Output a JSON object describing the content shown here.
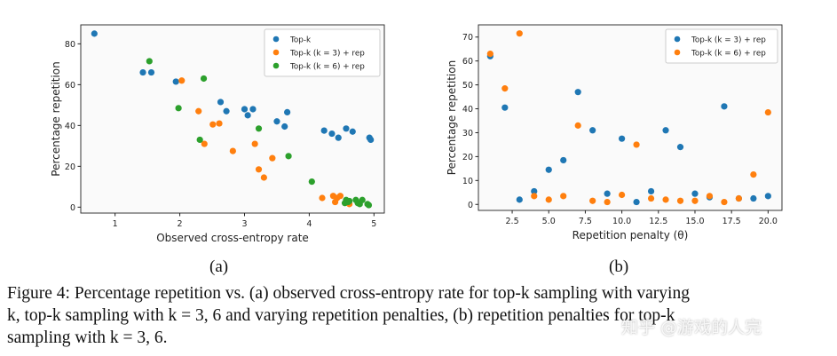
{
  "chart_data": [
    {
      "type": "scatter",
      "xlabel": "Observed cross-entropy rate",
      "ylabel": "Percentage repetition",
      "xlim": [
        0.47,
        5.16
      ],
      "ylim": [
        -2.9,
        89.3
      ],
      "xticks": [
        1,
        2,
        3,
        4,
        5
      ],
      "yticks": [
        0,
        20,
        40,
        60,
        80
      ],
      "grid": false,
      "legend_position": "top-right",
      "series": [
        {
          "name": "Top-k",
          "color": "#1f77b4",
          "x": [
            0.68,
            1.43,
            1.56,
            1.94,
            2.63,
            2.72,
            3.0,
            3.05,
            3.13,
            3.5,
            3.62,
            3.66,
            4.23,
            4.35,
            4.45,
            4.57,
            4.67,
            4.93,
            4.95
          ],
          "y": [
            85,
            66,
            66,
            61.5,
            51.5,
            47,
            48,
            45,
            48,
            42,
            39.5,
            46.5,
            37.5,
            36,
            34,
            38.5,
            37,
            34,
            33
          ]
        },
        {
          "name": "Top-k (k = 3) + rep",
          "color": "#ff7f0e",
          "x": [
            2.03,
            2.29,
            2.38,
            2.51,
            2.61,
            2.82,
            3.16,
            3.22,
            3.3,
            3.43,
            4.2,
            4.37,
            4.4,
            4.43,
            4.48,
            4.62
          ],
          "y": [
            62,
            47,
            31,
            40.5,
            41,
            27.5,
            31,
            18.5,
            14.5,
            24,
            4.5,
            5.5,
            2.5,
            4.5,
            5.5,
            1.5
          ]
        },
        {
          "name": "Top-k (k = 6) + rep",
          "color": "#2ca02c",
          "x": [
            1.53,
            1.98,
            2.31,
            2.37,
            3.22,
            3.68,
            4.04,
            4.55,
            4.57,
            4.6,
            4.62,
            4.72,
            4.75,
            4.78,
            4.82,
            4.9,
            4.92
          ],
          "y": [
            71.5,
            48.5,
            33,
            63,
            38.5,
            25,
            12.5,
            2,
            3.5,
            2.5,
            3,
            3.5,
            2,
            1.5,
            3.5,
            1.5,
            1
          ]
        }
      ]
    },
    {
      "type": "scatter",
      "xlabel": "Repetition penalty (θ)",
      "ylabel": "Percentage repetition",
      "xlim": [
        0.19,
        20.95
      ],
      "ylim": [
        -2.5,
        75.1
      ],
      "xticks": [
        2.5,
        5.0,
        7.5,
        10.0,
        12.5,
        15.0,
        17.5,
        20.0
      ],
      "yticks": [
        0,
        10,
        20,
        30,
        40,
        50,
        60,
        70
      ],
      "grid": false,
      "legend_position": "top-right",
      "series": [
        {
          "name": "Top-k (k = 3) + rep",
          "color": "#1f77b4",
          "x": [
            1,
            2,
            3,
            4,
            5,
            6,
            7,
            8,
            9,
            10,
            11,
            12,
            13,
            14,
            15,
            16,
            17,
            18,
            19,
            20
          ],
          "y": [
            62,
            40.5,
            2,
            5.5,
            14.5,
            18.5,
            47,
            31,
            4.5,
            27.5,
            1,
            5.5,
            31,
            24,
            4.5,
            3,
            41,
            2.5,
            2.5,
            3.5
          ]
        },
        {
          "name": "Top-k (k = 6) + rep",
          "color": "#ff7f0e",
          "x": [
            1,
            2,
            3,
            4,
            5,
            6,
            7,
            8,
            9,
            10,
            11,
            12,
            13,
            14,
            15,
            16,
            17,
            18,
            19,
            20
          ],
          "y": [
            63,
            48.5,
            71.5,
            3.5,
            2,
            3.5,
            33,
            1.5,
            1,
            4,
            25,
            2.5,
            2,
            1.5,
            1.5,
            3.5,
            1,
            2.5,
            12.5,
            38.5
          ]
        }
      ]
    }
  ],
  "subfigure_labels": [
    "(a)",
    "(b)"
  ],
  "caption": {
    "line1": "Figure 4: Percentage repetition vs. (a) observed cross-entropy rate for top-k sampling with varying",
    "line2": "k, top-k sampling with k = 3, 6 and varying repetition penalties, (b) repetition penalties for top-k",
    "line3": "sampling with k = 3, 6."
  },
  "watermark": "知乎 @游戏的人完"
}
